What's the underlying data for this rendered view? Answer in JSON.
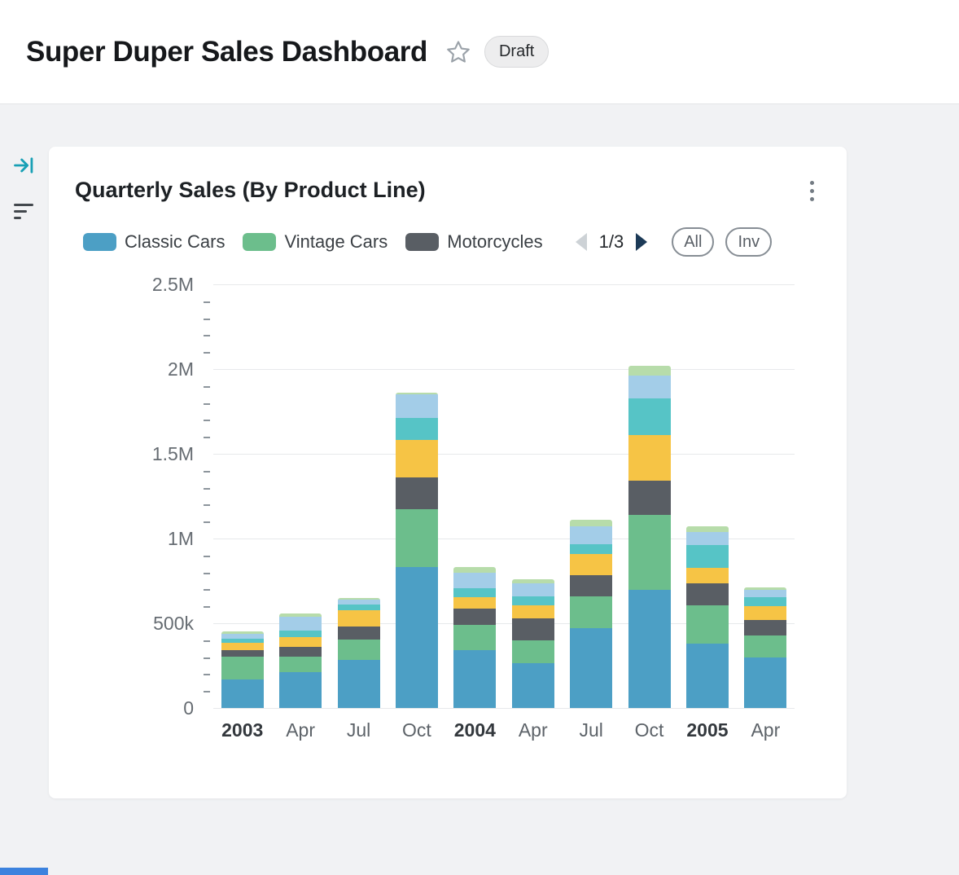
{
  "header": {
    "title": "Super Duper Sales Dashboard",
    "badge": "Draft"
  },
  "card": {
    "title": "Quarterly Sales (By Product Line)",
    "legend": [
      {
        "label": "Classic Cars",
        "color": "#4C9FC5"
      },
      {
        "label": "Vintage Cars",
        "color": "#6CBE8C"
      },
      {
        "label": "Motorcycles",
        "color": "#595E64"
      }
    ],
    "pagination": {
      "label": "1/3"
    },
    "filter_buttons": [
      {
        "label": "All"
      },
      {
        "label": "Inv"
      }
    ]
  },
  "chart_data": {
    "type": "bar",
    "stacked": true,
    "title": "Quarterly Sales (By Product Line)",
    "xlabel": "",
    "ylabel": "",
    "ylim": [
      0,
      2500000
    ],
    "grid": true,
    "legend_position": "top",
    "legend_page": "1/3",
    "yticks": [
      {
        "value": 0,
        "label": "0"
      },
      {
        "value": 500000,
        "label": "500k"
      },
      {
        "value": 1000000,
        "label": "1M"
      },
      {
        "value": 1500000,
        "label": "1.5M"
      },
      {
        "value": 2000000,
        "label": "2M"
      },
      {
        "value": 2500000,
        "label": "2.5M"
      }
    ],
    "minor_tick_step": 100000,
    "major_tick_step": 500000,
    "categories": [
      {
        "label": "2003",
        "bold": true
      },
      {
        "label": "Apr",
        "bold": false
      },
      {
        "label": "Jul",
        "bold": false
      },
      {
        "label": "Oct",
        "bold": false
      },
      {
        "label": "2004",
        "bold": true
      },
      {
        "label": "Apr",
        "bold": false
      },
      {
        "label": "Jul",
        "bold": false
      },
      {
        "label": "Oct",
        "bold": false
      },
      {
        "label": "2005",
        "bold": true
      },
      {
        "label": "Apr",
        "bold": false
      }
    ],
    "series": [
      {
        "name": "Classic Cars",
        "color": "#4C9FC5",
        "values": [
          170000,
          210000,
          285000,
          830000,
          340000,
          265000,
          470000,
          695000,
          380000,
          300000
        ]
      },
      {
        "name": "Vintage Cars",
        "color": "#6CBE8C",
        "values": [
          135000,
          95000,
          120000,
          345000,
          150000,
          135000,
          190000,
          445000,
          225000,
          130000
        ]
      },
      {
        "name": "Motorcycles",
        "color": "#595E64",
        "values": [
          35000,
          55000,
          75000,
          185000,
          95000,
          130000,
          125000,
          200000,
          130000,
          90000
        ]
      },
      {
        "name": "Unlabeled (yellow, legend page 2)",
        "color": "#F6C445",
        "values": [
          45000,
          60000,
          95000,
          220000,
          70000,
          75000,
          125000,
          270000,
          90000,
          80000
        ]
      },
      {
        "name": "Unlabeled (teal, legend page 2)",
        "color": "#56C4C6",
        "values": [
          25000,
          35000,
          35000,
          130000,
          50000,
          55000,
          55000,
          215000,
          135000,
          55000
        ]
      },
      {
        "name": "Unlabeled (light blue, legend page 2)",
        "color": "#A3CDE8",
        "values": [
          30000,
          85000,
          30000,
          140000,
          95000,
          75000,
          105000,
          135000,
          80000,
          40000
        ]
      },
      {
        "name": "Unlabeled (light green, legend page 3)",
        "color": "#B7DCAA",
        "values": [
          10000,
          20000,
          10000,
          10000,
          30000,
          25000,
          40000,
          60000,
          30000,
          15000
        ]
      }
    ]
  }
}
